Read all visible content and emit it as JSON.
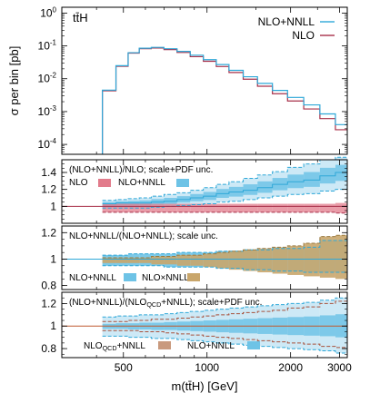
{
  "chart_data": [
    {
      "type": "line",
      "process": "tt̄H",
      "ylabel": "σ per bin [pb]",
      "xlabel": "m(tt̄H) [GeV]",
      "xscale": "log",
      "yscale": "log",
      "xlim": [
        300,
        3200
      ],
      "ylim": [
        5e-05,
        1.5
      ],
      "x_ticks": [
        500,
        1000,
        2000,
        3000
      ],
      "x_edges": [
        420,
        470,
        520,
        570,
        630,
        700,
        780,
        870,
        970,
        1080,
        1200,
        1350,
        1520,
        1720,
        1950,
        2230,
        2550,
        2900,
        3200
      ],
      "legend_position": "top-right",
      "series": [
        {
          "name": "NLO+NNLL",
          "color": "#2fa8d8",
          "values": [
            0.0045,
            0.025,
            0.062,
            0.085,
            0.09,
            0.082,
            0.068,
            0.052,
            0.038,
            0.027,
            0.018,
            0.0115,
            0.0072,
            0.0044,
            0.0027,
            0.0016,
            0.00085,
            0.0004
          ]
        },
        {
          "name": "NLO",
          "color": "#a8304a",
          "values": [
            0.0043,
            0.024,
            0.06,
            0.082,
            0.086,
            0.077,
            0.063,
            0.047,
            0.034,
            0.0235,
            0.0155,
            0.0097,
            0.0059,
            0.0035,
            0.0021,
            0.0012,
            0.00061,
            0.00028
          ]
        }
      ]
    },
    {
      "type": "area",
      "label": "(NLO+NNLL)/NLO; scale+PDF unc.",
      "xscale": "log",
      "xlim": [
        300,
        3200
      ],
      "ylim": [
        0.8,
        1.55
      ],
      "y_ticks": [
        1,
        1.2,
        1.4
      ],
      "x_edges": [
        420,
        470,
        520,
        570,
        630,
        700,
        780,
        870,
        970,
        1080,
        1200,
        1350,
        1520,
        1720,
        1950,
        2230,
        2550,
        2900,
        3200
      ],
      "series": [
        {
          "name": "NLO",
          "color": "#e27b8b",
          "lo": [
            0.93,
            0.93,
            0.93,
            0.93,
            0.93,
            0.93,
            0.93,
            0.93,
            0.93,
            0.93,
            0.93,
            0.93,
            0.93,
            0.93,
            0.93,
            0.93,
            0.93,
            0.92
          ],
          "hi": [
            1.03,
            1.03,
            1.03,
            1.03,
            1.03,
            1.03,
            1.03,
            1.03,
            1.03,
            1.03,
            1.03,
            1.03,
            1.03,
            1.03,
            1.03,
            1.03,
            1.03,
            1.04
          ]
        },
        {
          "name": "NLO+NNLL",
          "color": "#6ec3e6",
          "central": [
            1.03,
            1.04,
            1.04,
            1.04,
            1.05,
            1.06,
            1.08,
            1.1,
            1.12,
            1.15,
            1.17,
            1.19,
            1.22,
            1.26,
            1.29,
            1.31,
            1.36,
            1.4
          ],
          "lo": [
            0.98,
            0.98,
            0.98,
            0.98,
            0.99,
            1.0,
            1.01,
            1.02,
            1.03,
            1.05,
            1.06,
            1.08,
            1.1,
            1.12,
            1.14,
            1.15,
            1.18,
            1.2
          ],
          "hi": [
            1.07,
            1.08,
            1.09,
            1.1,
            1.12,
            1.14,
            1.16,
            1.19,
            1.22,
            1.26,
            1.29,
            1.33,
            1.37,
            1.41,
            1.46,
            1.5,
            1.55,
            1.58
          ]
        }
      ]
    },
    {
      "type": "area",
      "label": "NLO+NNLL/(NLO+NNLL); scale unc.",
      "xscale": "log",
      "xlim": [
        300,
        3200
      ],
      "ylim": [
        0.77,
        1.25
      ],
      "y_ticks": [
        0.8,
        1,
        1.2
      ],
      "x_edges": [
        420,
        470,
        520,
        570,
        630,
        700,
        780,
        870,
        970,
        1080,
        1200,
        1350,
        1520,
        1720,
        1950,
        2230,
        2550,
        2900,
        3200
      ],
      "series": [
        {
          "name": "NLO+NNLL",
          "color": "#6ec3e6",
          "lo": [
            0.95,
            0.95,
            0.95,
            0.95,
            0.95,
            0.94,
            0.94,
            0.94,
            0.94,
            0.93,
            0.93,
            0.92,
            0.92,
            0.91,
            0.91,
            0.9,
            0.9,
            0.9
          ],
          "hi": [
            1.03,
            1.03,
            1.04,
            1.04,
            1.04,
            1.04,
            1.05,
            1.05,
            1.05,
            1.06,
            1.06,
            1.07,
            1.07,
            1.08,
            1.08,
            1.09,
            1.14,
            1.14
          ]
        },
        {
          "name": "NLO×NNLL",
          "color": "#c9a66b",
          "lo": [
            0.97,
            0.97,
            0.97,
            0.97,
            0.96,
            0.96,
            0.95,
            0.95,
            0.94,
            0.93,
            0.92,
            0.91,
            0.9,
            0.89,
            0.88,
            0.87,
            0.86,
            0.85
          ],
          "hi": [
            1.01,
            1.01,
            1.01,
            1.01,
            1.02,
            1.02,
            1.03,
            1.03,
            1.04,
            1.05,
            1.06,
            1.07,
            1.08,
            1.09,
            1.1,
            1.12,
            1.17,
            1.18
          ]
        }
      ]
    },
    {
      "type": "area",
      "label": "(NLO+NNLL)/(NLOQCD+NNLL); scale+PDF unc.",
      "label_parts": [
        "(NLO+NNLL)/(NLO",
        "QCD",
        "+NNLL); scale+PDF unc."
      ],
      "xscale": "log",
      "xlim": [
        300,
        3200
      ],
      "ylim": [
        0.72,
        1.3
      ],
      "y_ticks": [
        0.8,
        1,
        1.2
      ],
      "x_edges": [
        420,
        470,
        520,
        570,
        630,
        700,
        780,
        870,
        970,
        1080,
        1200,
        1350,
        1520,
        1720,
        1950,
        2230,
        2550,
        2900,
        3200
      ],
      "series": [
        {
          "name": "NLOQCD+NNLL",
          "name_parts": [
            "NLO",
            "QCD",
            "+NNLL"
          ],
          "color": "#c99a7e",
          "lo": [
            0.96,
            0.96,
            0.96,
            0.95,
            0.95,
            0.94,
            0.93,
            0.92,
            0.91,
            0.9,
            0.89,
            0.88,
            0.87,
            0.86,
            0.85,
            0.84,
            0.82,
            0.81
          ],
          "hi": [
            1.04,
            1.04,
            1.05,
            1.05,
            1.06,
            1.06,
            1.07,
            1.08,
            1.09,
            1.1,
            1.11,
            1.12,
            1.13,
            1.14,
            1.16,
            1.17,
            1.2,
            1.22
          ]
        },
        {
          "name": "NLO+NNLL",
          "color": "#6ec3e6",
          "lo": [
            0.91,
            0.91,
            0.9,
            0.9,
            0.89,
            0.89,
            0.88,
            0.87,
            0.86,
            0.85,
            0.84,
            0.83,
            0.82,
            0.81,
            0.8,
            0.79,
            0.78,
            0.76
          ],
          "hi": [
            1.08,
            1.09,
            1.09,
            1.1,
            1.1,
            1.11,
            1.12,
            1.13,
            1.14,
            1.15,
            1.16,
            1.17,
            1.18,
            1.19,
            1.2,
            1.21,
            1.23,
            1.25
          ]
        }
      ]
    }
  ]
}
